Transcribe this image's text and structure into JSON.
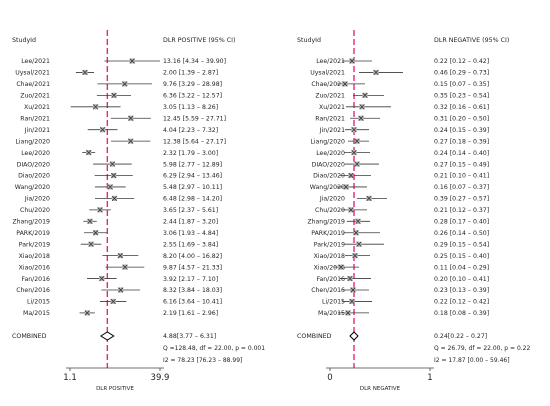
{
  "chart_data": [
    {
      "type": "forest",
      "study_header": "StudyId",
      "ci_header": "DLR POSITIVE (95% CI)",
      "xlabel": "DLR POSITIVE",
      "x_axis_ticks": [
        "1.1",
        "39.9"
      ],
      "x_scale": "log",
      "xlim": [
        1.1,
        39.9
      ],
      "reference_line": 4.88,
      "studies": [
        {
          "name": "Lee/2021",
          "est": 13.16,
          "lo": 4.34,
          "hi": 39.9,
          "text": "13.16 [4.34 – 39.90]"
        },
        {
          "name": "Uysal/2021",
          "est": 2.0,
          "lo": 1.39,
          "hi": 2.87,
          "text": "2.00 [1.39 – 2.87]"
        },
        {
          "name": "Chae/2021",
          "est": 9.76,
          "lo": 3.29,
          "hi": 28.98,
          "text": "9.76 [3.29 – 28.98]"
        },
        {
          "name": "Zuo/2021",
          "est": 6.36,
          "lo": 3.22,
          "hi": 12.57,
          "text": "6.36 [3.22 – 12.57]"
        },
        {
          "name": "Xu/2021",
          "est": 3.05,
          "lo": 1.13,
          "hi": 8.26,
          "text": "3.05 [1.13 – 8.26]"
        },
        {
          "name": "Ran/2021",
          "est": 12.45,
          "lo": 5.59,
          "hi": 27.71,
          "text": "12.45 [5.59 – 27.71]"
        },
        {
          "name": "Jin/2021",
          "est": 4.04,
          "lo": 2.23,
          "hi": 7.32,
          "text": "4.04 [2.23 – 7.32]"
        },
        {
          "name": "Liang/2020",
          "est": 12.38,
          "lo": 5.64,
          "hi": 27.17,
          "text": "12.38 [5.64 – 27.17]"
        },
        {
          "name": "Lee/2020",
          "est": 2.32,
          "lo": 1.79,
          "hi": 3.0,
          "text": "2.32 [1.79 – 3.00]"
        },
        {
          "name": "DIAO/2020",
          "est": 5.98,
          "lo": 2.77,
          "hi": 12.89,
          "text": "5.98 [2.77 – 12.89]"
        },
        {
          "name": "Diao/2020",
          "est": 6.29,
          "lo": 2.94,
          "hi": 13.46,
          "text": "6.29 [2.94 – 13.46]"
        },
        {
          "name": "Wang/2020",
          "est": 5.48,
          "lo": 2.97,
          "hi": 10.11,
          "text": "5.48 [2.97 – 10.11]"
        },
        {
          "name": "Jia/2020",
          "est": 6.48,
          "lo": 2.98,
          "hi": 14.2,
          "text": "6.48 [2.98 – 14.20]"
        },
        {
          "name": "Chu/2020",
          "est": 3.65,
          "lo": 2.37,
          "hi": 5.61,
          "text": "3.65 [2.37 – 5.61]"
        },
        {
          "name": "Zhang/2019",
          "est": 2.44,
          "lo": 1.87,
          "hi": 3.2,
          "text": "2.44 [1.87 – 3.20]"
        },
        {
          "name": "PARK/2019",
          "est": 3.06,
          "lo": 1.93,
          "hi": 4.84,
          "text": "3.06 [1.93 – 4.84]"
        },
        {
          "name": "Park/2019",
          "est": 2.55,
          "lo": 1.69,
          "hi": 3.84,
          "text": "2.55 [1.69 – 3.84]"
        },
        {
          "name": "Xiao/2018",
          "est": 8.2,
          "lo": 4.0,
          "hi": 16.82,
          "text": "8.20 [4.00 – 16.82]"
        },
        {
          "name": "Xiao/2016",
          "est": 9.87,
          "lo": 4.57,
          "hi": 21.33,
          "text": "9.87 [4.57 – 21.33]"
        },
        {
          "name": "Fan/2016",
          "est": 3.92,
          "lo": 2.17,
          "hi": 7.1,
          "text": "3.92 [2.17 – 7.10]"
        },
        {
          "name": "Chen/2016",
          "est": 8.32,
          "lo": 3.84,
          "hi": 18.03,
          "text": "8.32 [3.84 – 18.03]"
        },
        {
          "name": "Li/2015",
          "est": 6.16,
          "lo": 3.64,
          "hi": 10.41,
          "text": "6.16 [3.64 – 10.41]"
        },
        {
          "name": "Ma/2015",
          "est": 2.19,
          "lo": 1.61,
          "hi": 2.96,
          "text": "2.19 [1.61 – 2.96]"
        }
      ],
      "combined": {
        "label": "COMBINED",
        "est": 4.88,
        "lo": 3.77,
        "hi": 6.31,
        "text": "4.88[3.77 – 6.31]",
        "heterogeneity": [
          "Q =128.48, df = 22.00, p = 0.001",
          "I2 = 78.23 [76.23 – 88.99]"
        ]
      }
    },
    {
      "type": "forest",
      "study_header": "StudyId",
      "ci_header": "DLR NEGATIVE (95% CI)",
      "xlabel": "DLR NEGATIVE",
      "x_axis_ticks": [
        "0",
        "1"
      ],
      "x_scale": "linear",
      "xlim": [
        0,
        1
      ],
      "reference_line": 0.24,
      "studies": [
        {
          "name": "Lee/2021",
          "est": 0.22,
          "lo": 0.12,
          "hi": 0.42,
          "text": "0.22 [0.12 – 0.42]"
        },
        {
          "name": "Uysal/2021",
          "est": 0.46,
          "lo": 0.29,
          "hi": 0.73,
          "text": "0.46 [0.29 – 0.73]"
        },
        {
          "name": "Chae/2021",
          "est": 0.15,
          "lo": 0.07,
          "hi": 0.35,
          "text": "0.15 [0.07 – 0.35]"
        },
        {
          "name": "Zuo/2021",
          "est": 0.35,
          "lo": 0.23,
          "hi": 0.54,
          "text": "0.35 [0.23 – 0.54]"
        },
        {
          "name": "Xu/2021",
          "est": 0.32,
          "lo": 0.16,
          "hi": 0.61,
          "text": "0.32 [0.16 – 0.61]"
        },
        {
          "name": "Ran/2021",
          "est": 0.31,
          "lo": 0.2,
          "hi": 0.5,
          "text": "0.31 [0.20 – 0.50]"
        },
        {
          "name": "Jin/2021",
          "est": 0.24,
          "lo": 0.15,
          "hi": 0.39,
          "text": "0.24 [0.15 – 0.39]"
        },
        {
          "name": "Liang/2020",
          "est": 0.27,
          "lo": 0.18,
          "hi": 0.39,
          "text": "0.27 [0.18 – 0.39]"
        },
        {
          "name": "Lee/2020",
          "est": 0.24,
          "lo": 0.14,
          "hi": 0.4,
          "text": "0.24 [0.14 – 0.40]"
        },
        {
          "name": "DIAO/2020",
          "est": 0.27,
          "lo": 0.15,
          "hi": 0.49,
          "text": "0.27 [0.15 – 0.49]"
        },
        {
          "name": "Diao/2020",
          "est": 0.21,
          "lo": 0.1,
          "hi": 0.41,
          "text": "0.21 [0.10 – 0.41]"
        },
        {
          "name": "Wang/2020",
          "est": 0.16,
          "lo": 0.07,
          "hi": 0.37,
          "text": "0.16 [0.07 – 0.37]"
        },
        {
          "name": "Jia/2020",
          "est": 0.39,
          "lo": 0.27,
          "hi": 0.57,
          "text": "0.39 [0.27 – 0.57]"
        },
        {
          "name": "Chu/2020",
          "est": 0.21,
          "lo": 0.12,
          "hi": 0.37,
          "text": "0.21 [0.12 – 0.37]"
        },
        {
          "name": "Zhang/2019",
          "est": 0.28,
          "lo": 0.17,
          "hi": 0.4,
          "text": "0.28 [0.17 – 0.40]"
        },
        {
          "name": "PARK/2019",
          "est": 0.26,
          "lo": 0.14,
          "hi": 0.5,
          "text": "0.26 [0.14 – 0.50]"
        },
        {
          "name": "Park/2019",
          "est": 0.29,
          "lo": 0.15,
          "hi": 0.54,
          "text": "0.29 [0.15 – 0.54]"
        },
        {
          "name": "Xiao/2018",
          "est": 0.25,
          "lo": 0.15,
          "hi": 0.4,
          "text": "0.25 [0.15 – 0.40]"
        },
        {
          "name": "Xiao/2016",
          "est": 0.11,
          "lo": 0.04,
          "hi": 0.29,
          "text": "0.11 [0.04 – 0.29]"
        },
        {
          "name": "Fan/2016",
          "est": 0.2,
          "lo": 0.1,
          "hi": 0.41,
          "text": "0.20 [0.10 – 0.41]"
        },
        {
          "name": "Chen/2016",
          "est": 0.23,
          "lo": 0.13,
          "hi": 0.39,
          "text": "0.23 [0.13 – 0.39]"
        },
        {
          "name": "Li/2015",
          "est": 0.22,
          "lo": 0.12,
          "hi": 0.42,
          "text": "0.22 [0.12 – 0.42]"
        },
        {
          "name": "Ma/2015",
          "est": 0.18,
          "lo": 0.08,
          "hi": 0.39,
          "text": "0.18 [0.08 – 0.39]"
        }
      ],
      "combined": {
        "label": "COMBINED",
        "est": 0.24,
        "lo": 0.22,
        "hi": 0.27,
        "text": "0.24[0.22 – 0.27]",
        "heterogeneity": [
          "Q = 26.79, df = 22.00, p = 0.22",
          "I2 = 17.87 [0.00 – 59.46]"
        ]
      }
    }
  ],
  "colors": {
    "background": "#ffffff",
    "text": "#1f1f1f",
    "axis": "#404040",
    "ci_line": "#3a3a3a",
    "marker_fill": "#b7b7b7",
    "marker_edge": "#333333",
    "reference_line": "#e8257a",
    "diamond_edge": "#000000"
  }
}
